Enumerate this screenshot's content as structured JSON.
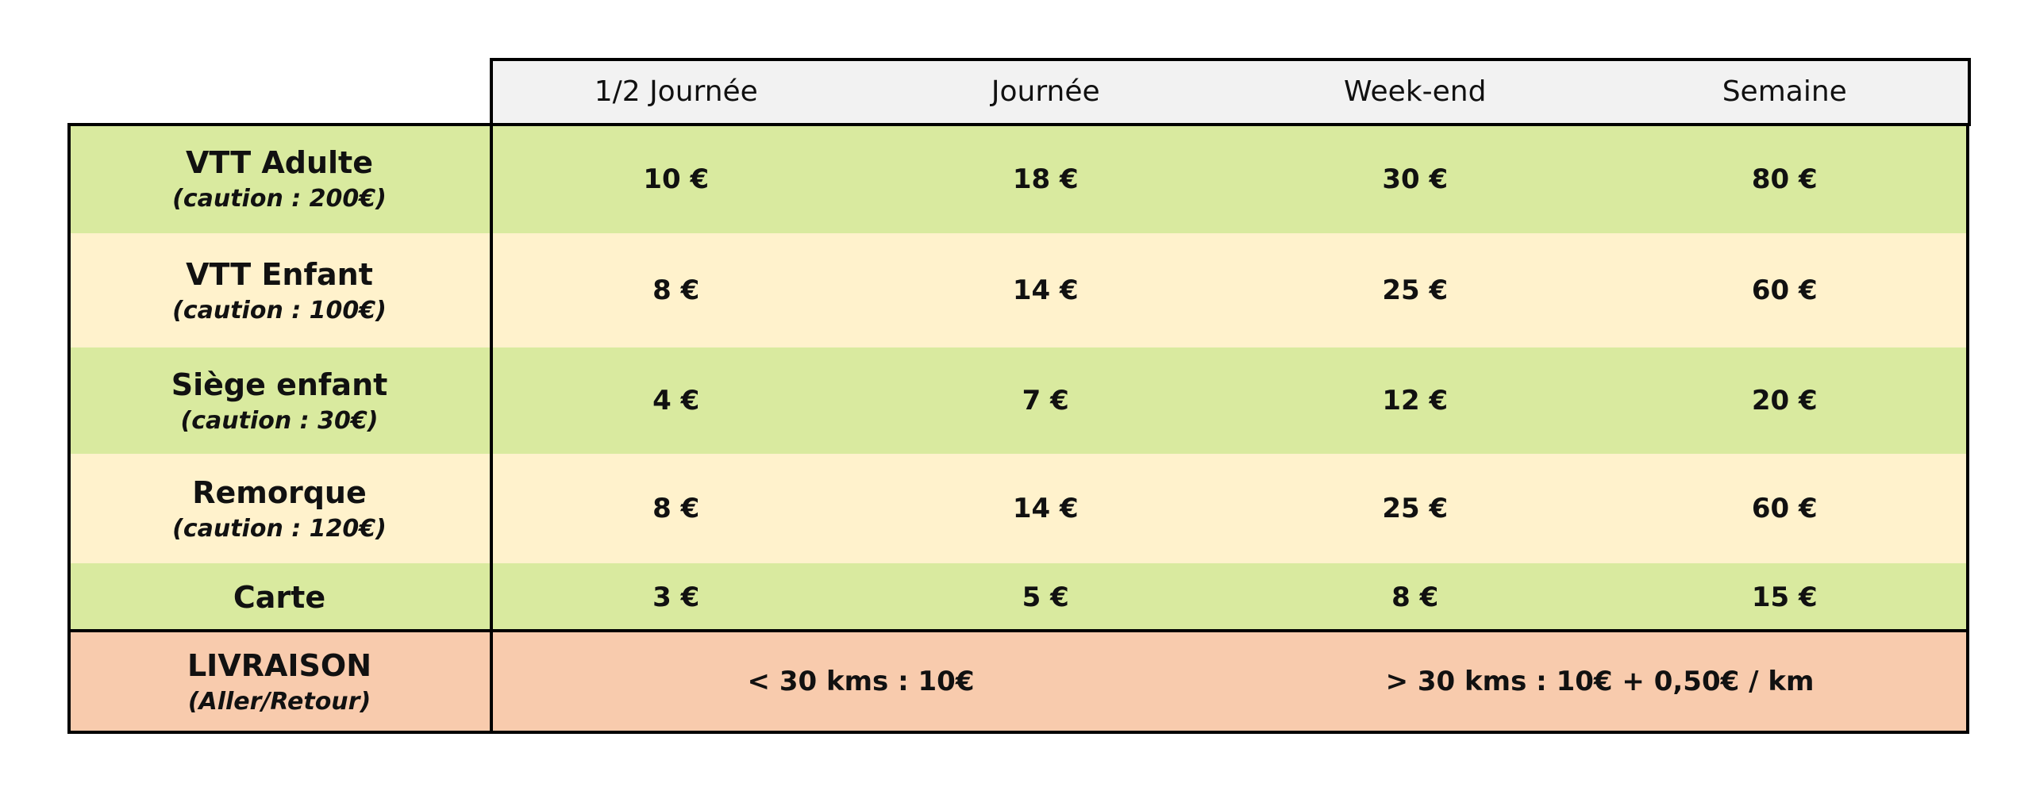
{
  "table": {
    "columns": [
      "1/2 Journée",
      "Journée",
      "Week-end",
      "Semaine"
    ],
    "rows": [
      {
        "label": "VTT Adulte",
        "note": "(caution : 200€)",
        "prices": [
          "10 €",
          "18 €",
          "30 €",
          "80 €"
        ]
      },
      {
        "label": "VTT Enfant",
        "note": "(caution : 100€)",
        "prices": [
          "8 €",
          "14 €",
          "25 €",
          "60 €"
        ]
      },
      {
        "label": "Siège enfant",
        "note": "(caution : 30€)",
        "prices": [
          "4 €",
          "7 €",
          "12 €",
          "20 €"
        ]
      },
      {
        "label": "Remorque",
        "note": "(caution : 120€)",
        "prices": [
          "8 €",
          "14 €",
          "25 €",
          "60 €"
        ]
      },
      {
        "label": "Carte",
        "prices": [
          "3 €",
          "5 €",
          "8 €",
          "15 €"
        ]
      }
    ],
    "delivery": {
      "label": "LIVRAISON",
      "note": "(Aller/Retour)",
      "options": [
        "< 30 kms : 10€",
        "> 30 kms : 10€ + 0,50€ / km"
      ]
    }
  }
}
